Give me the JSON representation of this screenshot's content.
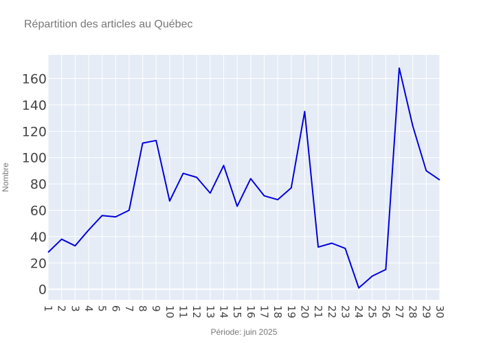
{
  "chart_data": {
    "type": "line",
    "title": "Répartition des articles au Québec",
    "xlabel": "Période: juin 2025",
    "ylabel": "Nombre",
    "x": [
      1,
      2,
      3,
      4,
      5,
      6,
      7,
      8,
      9,
      10,
      11,
      12,
      13,
      14,
      15,
      16,
      17,
      18,
      19,
      20,
      21,
      22,
      23,
      24,
      25,
      26,
      27,
      28,
      29,
      30
    ],
    "xticks": [
      "1",
      "2",
      "3",
      "4",
      "5",
      "6",
      "7",
      "8",
      "9",
      "10",
      "11",
      "12",
      "13",
      "14",
      "15",
      "16",
      "17",
      "18",
      "19",
      "20",
      "21",
      "22",
      "23",
      "24",
      "25",
      "26",
      "27",
      "28",
      "29",
      "30"
    ],
    "series": [
      {
        "values": [
          28,
          38,
          33,
          45,
          56,
          55,
          60,
          111,
          113,
          67,
          88,
          85,
          73,
          94,
          63,
          84,
          71,
          68,
          77,
          135,
          32,
          35,
          31,
          1,
          10,
          15,
          168,
          124,
          90,
          83
        ],
        "color": "#0000dd"
      }
    ],
    "ylim": [
      -8,
      178
    ],
    "yticks": [
      0,
      20,
      40,
      60,
      80,
      100,
      120,
      140,
      160
    ],
    "grid": true,
    "legend": "none"
  },
  "colors": {
    "plot_background": "#e5ecf6",
    "grid": "#ffffff",
    "line": "#0000dd"
  }
}
